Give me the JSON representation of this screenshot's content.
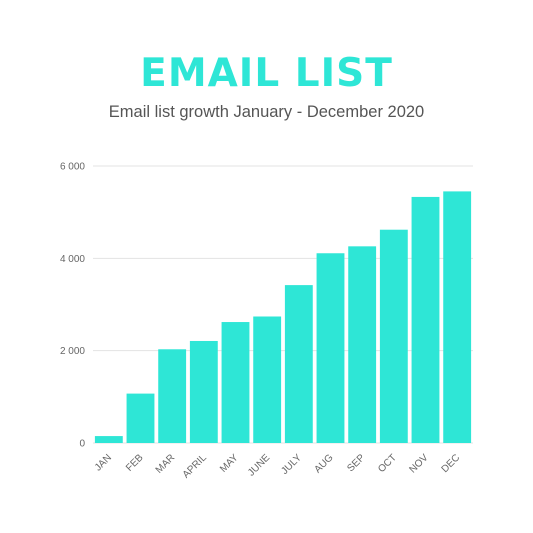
{
  "colors": {
    "bar": "#2ee6d6",
    "title": "#2ee6d6",
    "subtitle": "#555555",
    "axis_text": "#666666",
    "grid": "#e3e3e3"
  },
  "chart_data": {
    "type": "bar",
    "title": "EMAIL LIST",
    "subtitle": "Email list growth January - December 2020",
    "categories": [
      "JAN",
      "FEB",
      "MAR",
      "APRIL",
      "MAY",
      "JUNE",
      "JULY",
      "AUG",
      "SEP",
      "OCT",
      "NOV",
      "DEC"
    ],
    "values": [
      150,
      1070,
      2030,
      2210,
      2620,
      2740,
      3420,
      4110,
      4260,
      4620,
      5330,
      5450
    ],
    "ylim": [
      0,
      6000
    ],
    "yticks": [
      0,
      2000,
      4000,
      6000
    ],
    "ytick_labels": [
      "0",
      "2 000",
      "4 000",
      "6 000"
    ],
    "grid": true,
    "legend": false
  }
}
